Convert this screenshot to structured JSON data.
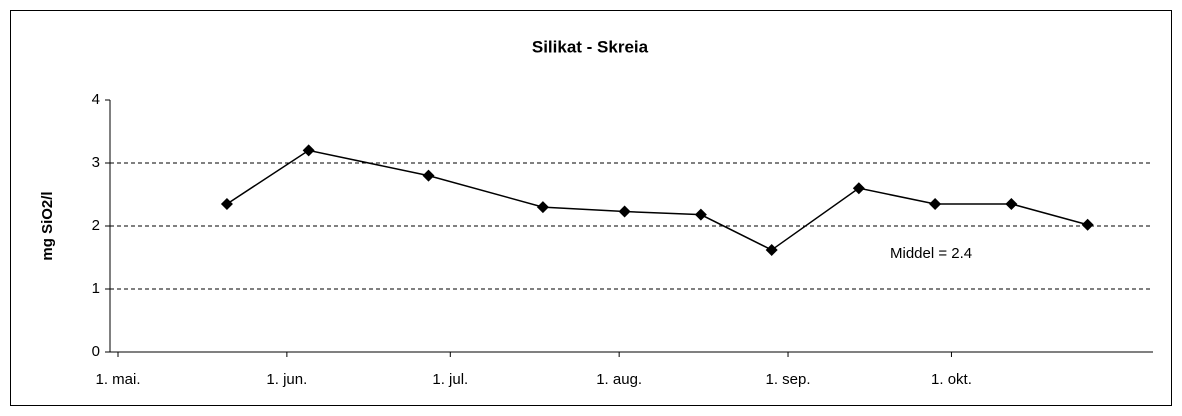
{
  "chart_data": {
    "type": "line",
    "title": "Silikat - Skreia",
    "ylabel": "mg SiO2/l",
    "x": [
      20,
      35,
      57,
      78,
      93,
      107,
      120,
      136,
      150,
      164,
      178
    ],
    "series": [
      {
        "name": "Silikat",
        "color": "#000000",
        "values": [
          2.35,
          3.2,
          2.8,
          2.3,
          2.23,
          2.18,
          1.62,
          2.6,
          2.35,
          2.35,
          2.02
        ]
      }
    ],
    "xlim": [
      0,
      190
    ],
    "xticks": [
      {
        "value": 0,
        "label": "1. mai."
      },
      {
        "value": 31,
        "label": "1. jun."
      },
      {
        "value": 61,
        "label": "1. jul."
      },
      {
        "value": 92,
        "label": "1. aug."
      },
      {
        "value": 123,
        "label": "1. sep."
      },
      {
        "value": 153,
        "label": "1. okt."
      }
    ],
    "ylim": [
      0,
      4
    ],
    "yticks": [
      0,
      1,
      2,
      3,
      4
    ],
    "grid": true,
    "annotation": "Middel = 2.4"
  }
}
